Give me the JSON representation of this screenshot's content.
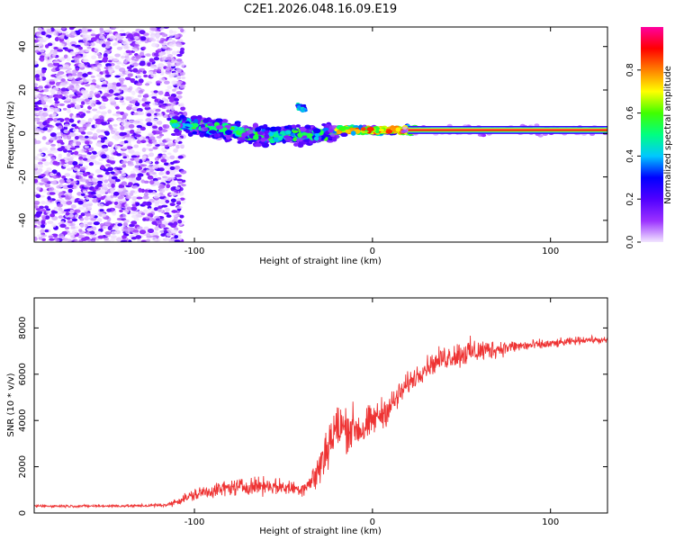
{
  "figure": {
    "title": "C2E1.2026.048.16.09.E19"
  },
  "chart_data": [
    {
      "type": "heatmap",
      "name": "spectrogram",
      "xlabel": "Height of straight line (km)",
      "ylabel": "Frequency (Hz)",
      "xlim": [
        -190,
        132
      ],
      "ylim": [
        -50,
        49
      ],
      "xticks": [
        -100,
        0,
        100
      ],
      "yticks": [
        -40,
        -20,
        0,
        20,
        40
      ],
      "xtick_labels": [
        "-100",
        "0",
        "100"
      ],
      "ytick_labels": [
        "-40",
        "-20",
        "0",
        "20",
        "40"
      ],
      "colorbar": {
        "label": "Normalized spectral amplitude",
        "range": [
          0.0,
          1.0
        ],
        "ticks": [
          0.0,
          0.2,
          0.4,
          0.6,
          0.8
        ],
        "tick_labels": [
          "0.0",
          "0.2",
          "0.4",
          "0.6",
          "0.8"
        ],
        "colormap": [
          "#f2e6ff",
          "#9a30ff",
          "#5000ff",
          "#0000ff",
          "#00c8ff",
          "#00ff80",
          "#40ff00",
          "#ffff00",
          "#ff8000",
          "#ff0000",
          "#ff00a0"
        ]
      },
      "features": {
        "noise_region_km": [
          -190,
          -112
        ],
        "signal_onset_km": -112,
        "carrier_freq_hz": 1.5,
        "carrier_steady_from_km": 20,
        "spur_center_km": -40,
        "spur_freq_hz": 12
      }
    },
    {
      "type": "line",
      "name": "snr",
      "xlabel": "Height of straight line (km)",
      "ylabel": "SNR (10 * v/v)",
      "xlim": [
        -190,
        132
      ],
      "ylim": [
        0,
        9300
      ],
      "xticks": [
        -100,
        0,
        100
      ],
      "yticks": [
        0,
        2000,
        4000,
        6000,
        8000
      ],
      "xtick_labels": [
        "-100",
        "0",
        "100"
      ],
      "ytick_labels": [
        "0",
        "2000",
        "4000",
        "6000",
        "8000"
      ],
      "color": "#ee3333",
      "series": [
        {
          "name": "SNR",
          "x": [
            -190,
            -160,
            -130,
            -115,
            -105,
            -95,
            -80,
            -70,
            -60,
            -50,
            -40,
            -35,
            -30,
            -25,
            -20,
            -15,
            -10,
            -5,
            0,
            10,
            20,
            30,
            40,
            50,
            60,
            70,
            80,
            90,
            100,
            110,
            120,
            132
          ],
          "mean": [
            300,
            300,
            310,
            350,
            650,
            900,
            1100,
            1150,
            1200,
            1100,
            1050,
            1300,
            1900,
            3000,
            3600,
            3700,
            3700,
            3600,
            4000,
            4600,
            5600,
            6300,
            6700,
            6900,
            7000,
            7100,
            7200,
            7250,
            7300,
            7400,
            7500,
            7450
          ],
          "spread": [
            80,
            80,
            90,
            120,
            350,
            450,
            500,
            550,
            550,
            480,
            450,
            650,
            1300,
            1800,
            1800,
            1500,
            1400,
            1300,
            1000,
            950,
            700,
            650,
            750,
            900,
            800,
            550,
            400,
            350,
            300,
            250,
            220,
            200
          ]
        }
      ]
    }
  ]
}
